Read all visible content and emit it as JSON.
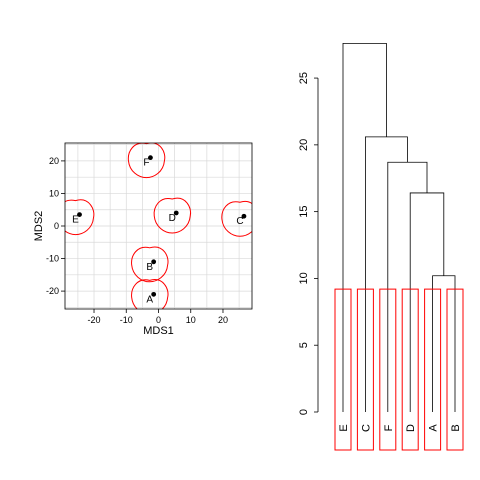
{
  "chart_data": [
    {
      "type": "scatter",
      "xlabel": "MDS1",
      "ylabel": "MDS2",
      "xlim": [
        -29,
        29
      ],
      "ylim": [
        -25.5,
        25.5
      ],
      "xticks": [
        -20,
        -10,
        0,
        10,
        20
      ],
      "yticks": [
        -20,
        -10,
        0,
        10,
        20
      ],
      "grid": true,
      "points": [
        {
          "label": "F",
          "x": -2.5,
          "y": 21
        },
        {
          "label": "E",
          "x": -24.5,
          "y": 3.5
        },
        {
          "label": "D",
          "x": 5.5,
          "y": 4
        },
        {
          "label": "C",
          "x": 26.5,
          "y": 3
        },
        {
          "label": "B",
          "x": -1.5,
          "y": -11
        },
        {
          "label": "A",
          "x": -1.5,
          "y": -21
        }
      ],
      "point_color": "#000000",
      "outline_color": "#ff0000"
    },
    {
      "type": "dendrogram",
      "ylim": [
        0,
        28
      ],
      "yticks": [
        0,
        5,
        10,
        15,
        20,
        25
      ],
      "leaves": [
        "E",
        "C",
        "F",
        "D",
        "A",
        "B"
      ],
      "merges": [
        {
          "left": "A",
          "right": "B",
          "height": 10.2
        },
        {
          "left": "D",
          "right": "A+B",
          "height": 16.4
        },
        {
          "left": "F",
          "right": "D+A+B",
          "height": 18.7
        },
        {
          "left": "C",
          "right": "F+D+A+B",
          "height": 20.6
        },
        {
          "left": "E",
          "right": "C+F+D+A+B",
          "height": 27.6
        }
      ],
      "cut_height": 9.2,
      "box_color": "#ff0000"
    }
  ]
}
